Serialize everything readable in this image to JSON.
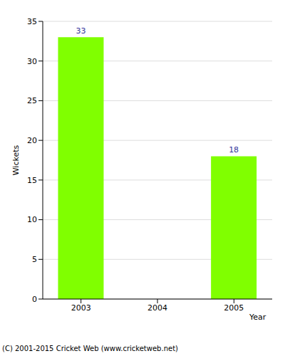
{
  "chart_data": {
    "type": "bar",
    "categories": [
      "2003",
      "2004",
      "2005"
    ],
    "values": [
      33,
      0,
      18
    ],
    "color": "#80ff00",
    "ylim": [
      0,
      35
    ],
    "yticks": [
      0,
      5,
      10,
      15,
      20,
      25,
      30,
      35
    ],
    "grid": true,
    "data_labels": true,
    "x_label": "Year",
    "y_label": "Wickets",
    "annotations": [
      "(C) 2001-2015 Cricket Web (www.cricketweb.net)"
    ]
  }
}
